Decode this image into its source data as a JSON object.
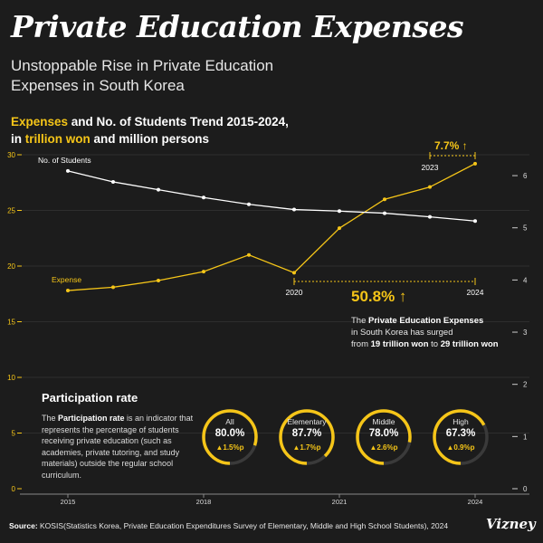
{
  "title": "Private Education Expenses",
  "subtitle": "Unstoppable Rise in Private Education Expenses in South Korea",
  "chart_heading": {
    "part1": "Expenses",
    "part2": " and No. of Students Trend 2015-2024,",
    "part3": "in ",
    "part4": "trillion won",
    "part5": " and million persons"
  },
  "chart_data": {
    "type": "line",
    "x": [
      2015,
      2016,
      2017,
      2018,
      2019,
      2020,
      2021,
      2022,
      2023,
      2024
    ],
    "x_tick_labels": [
      "2015",
      "2018",
      "2021",
      "2024"
    ],
    "y_left": {
      "ylim": [
        0,
        30
      ],
      "ticks": [
        "0",
        "5",
        "10",
        "15",
        "20",
        "25",
        "30"
      ]
    },
    "y_right": {
      "ylim": [
        0,
        6.4
      ],
      "ticks": [
        "0",
        "1",
        "2",
        "3",
        "4",
        "5",
        "6"
      ]
    },
    "grid": true,
    "series": [
      {
        "name": "Expense",
        "axis": "left",
        "color": "#f5c518",
        "values": [
          17.8,
          18.1,
          18.7,
          19.5,
          21.0,
          19.4,
          23.4,
          26.0,
          27.1,
          29.2
        ]
      },
      {
        "name": "No. of Students",
        "axis": "right",
        "color": "#ffffff",
        "values": [
          6.09,
          5.88,
          5.73,
          5.58,
          5.45,
          5.35,
          5.32,
          5.28,
          5.21,
          5.13
        ]
      }
    ],
    "annotations": {
      "big": {
        "pct": "50.8% ↑",
        "from": "2020",
        "to": "2024"
      },
      "small": {
        "pct": "7.7% ↑",
        "from": "2023"
      }
    }
  },
  "annotation_text": {
    "l1a": "The ",
    "l1b": "Private Education Expenses",
    "l2": "in South Korea has surged",
    "l3a": "from ",
    "l3b": "19 trillion won",
    "l3c": " to ",
    "l3d": "29 trillion won"
  },
  "participation": {
    "title": "Participation rate",
    "desc_a": "The ",
    "desc_b": "Participation rate",
    "desc_c": " is an indicator that represents the percentage of students receiving private education (such as academies, private tutoring, and study materials) outside the regular school curriculum.",
    "items": [
      {
        "label": "All",
        "value": "80.0%",
        "change": "▲1.5%p",
        "fraction": 0.8
      },
      {
        "label": "Elementary",
        "value": "87.7%",
        "change": "▲1.7%p",
        "fraction": 0.877
      },
      {
        "label": "Middle",
        "value": "78.0%",
        "change": "▲2.6%p",
        "fraction": 0.78
      },
      {
        "label": "High",
        "value": "67.3%",
        "change": "▲0.9%p",
        "fraction": 0.673
      }
    ]
  },
  "source": {
    "label": "Source:",
    "text": " KOSIS(Statistics Korea, Private Education Expenditures Survey of Elementary, Middle and High School Students), 2024"
  },
  "brand": "Vizney",
  "colors": {
    "accent": "#f5c518",
    "background": "#1c1c1c",
    "donut_track": "#3a3a3a"
  }
}
